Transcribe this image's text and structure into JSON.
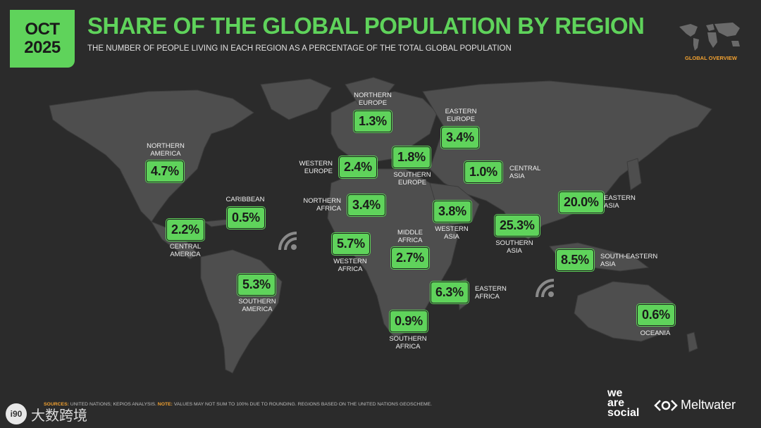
{
  "header": {
    "month": "OCT",
    "year": "2025",
    "title": "SHARE OF THE GLOBAL POPULATION BY REGION",
    "subtitle": "THE NUMBER OF PEOPLE LIVING IN EACH REGION AS A PERCENTAGE OF THE TOTAL GLOBAL POPULATION",
    "section_label": "GLOBAL OVERVIEW"
  },
  "regions": [
    {
      "label": "NORTHERN\nAMERICA",
      "value": "4.7%"
    },
    {
      "label": "CARIBBEAN",
      "value": "0.5%"
    },
    {
      "label": "CENTRAL\nAMERICA",
      "value": "2.2%"
    },
    {
      "label": "SOUTHERN\nAMERICA",
      "value": "5.3%"
    },
    {
      "label": "NORTHERN\nEUROPE",
      "value": "1.3%"
    },
    {
      "label": "WESTERN\nEUROPE",
      "value": "2.4%"
    },
    {
      "label": "SOUTHERN\nEUROPE",
      "value": "1.8%"
    },
    {
      "label": "EASTERN\nEUROPE",
      "value": "3.4%"
    },
    {
      "label": "CENTRAL\nASIA",
      "value": "1.0%"
    },
    {
      "label": "NORTHERN\nAFRICA",
      "value": "3.4%"
    },
    {
      "label": "WESTERN\nASIA",
      "value": "3.8%"
    },
    {
      "label": "SOUTHERN\nASIA",
      "value": "25.3%"
    },
    {
      "label": "EASTERN\nASIA",
      "value": "20.0%"
    },
    {
      "label": "WESTERN\nAFRICA",
      "value": "5.7%"
    },
    {
      "label": "MIDDLE\nAFRICA",
      "value": "2.7%"
    },
    {
      "label": "SOUTH-EASTERN\nASIA",
      "value": "8.5%"
    },
    {
      "label": "EASTERN\nAFRICA",
      "value": "6.3%"
    },
    {
      "label": "SOUTHERN\nAFRICA",
      "value": "0.9%"
    },
    {
      "label": "OCEANIA",
      "value": "0.6%"
    }
  ],
  "footer": {
    "sources_label": "SOURCES:",
    "sources_text": " UNITED NATIONS; KEPIOS ANALYSIS. ",
    "note_label": "NOTE:",
    "note_text": " VALUES MAY NOT SUM TO 100% DUE TO ROUNDING. REGIONS BASED ON THE UNITED NATIONS GEOSCHEME."
  },
  "branding": {
    "was_line1": "we",
    "was_line2": "are",
    "was_line3": "social",
    "meltwater": "Meltwater",
    "watermark_text": "大数跨境",
    "watermark_icon": "i90"
  },
  "colors": {
    "accent": "#5fd35b",
    "background": "#2b2b2b",
    "land": "#4e4e4e",
    "note": "#f0a030"
  }
}
